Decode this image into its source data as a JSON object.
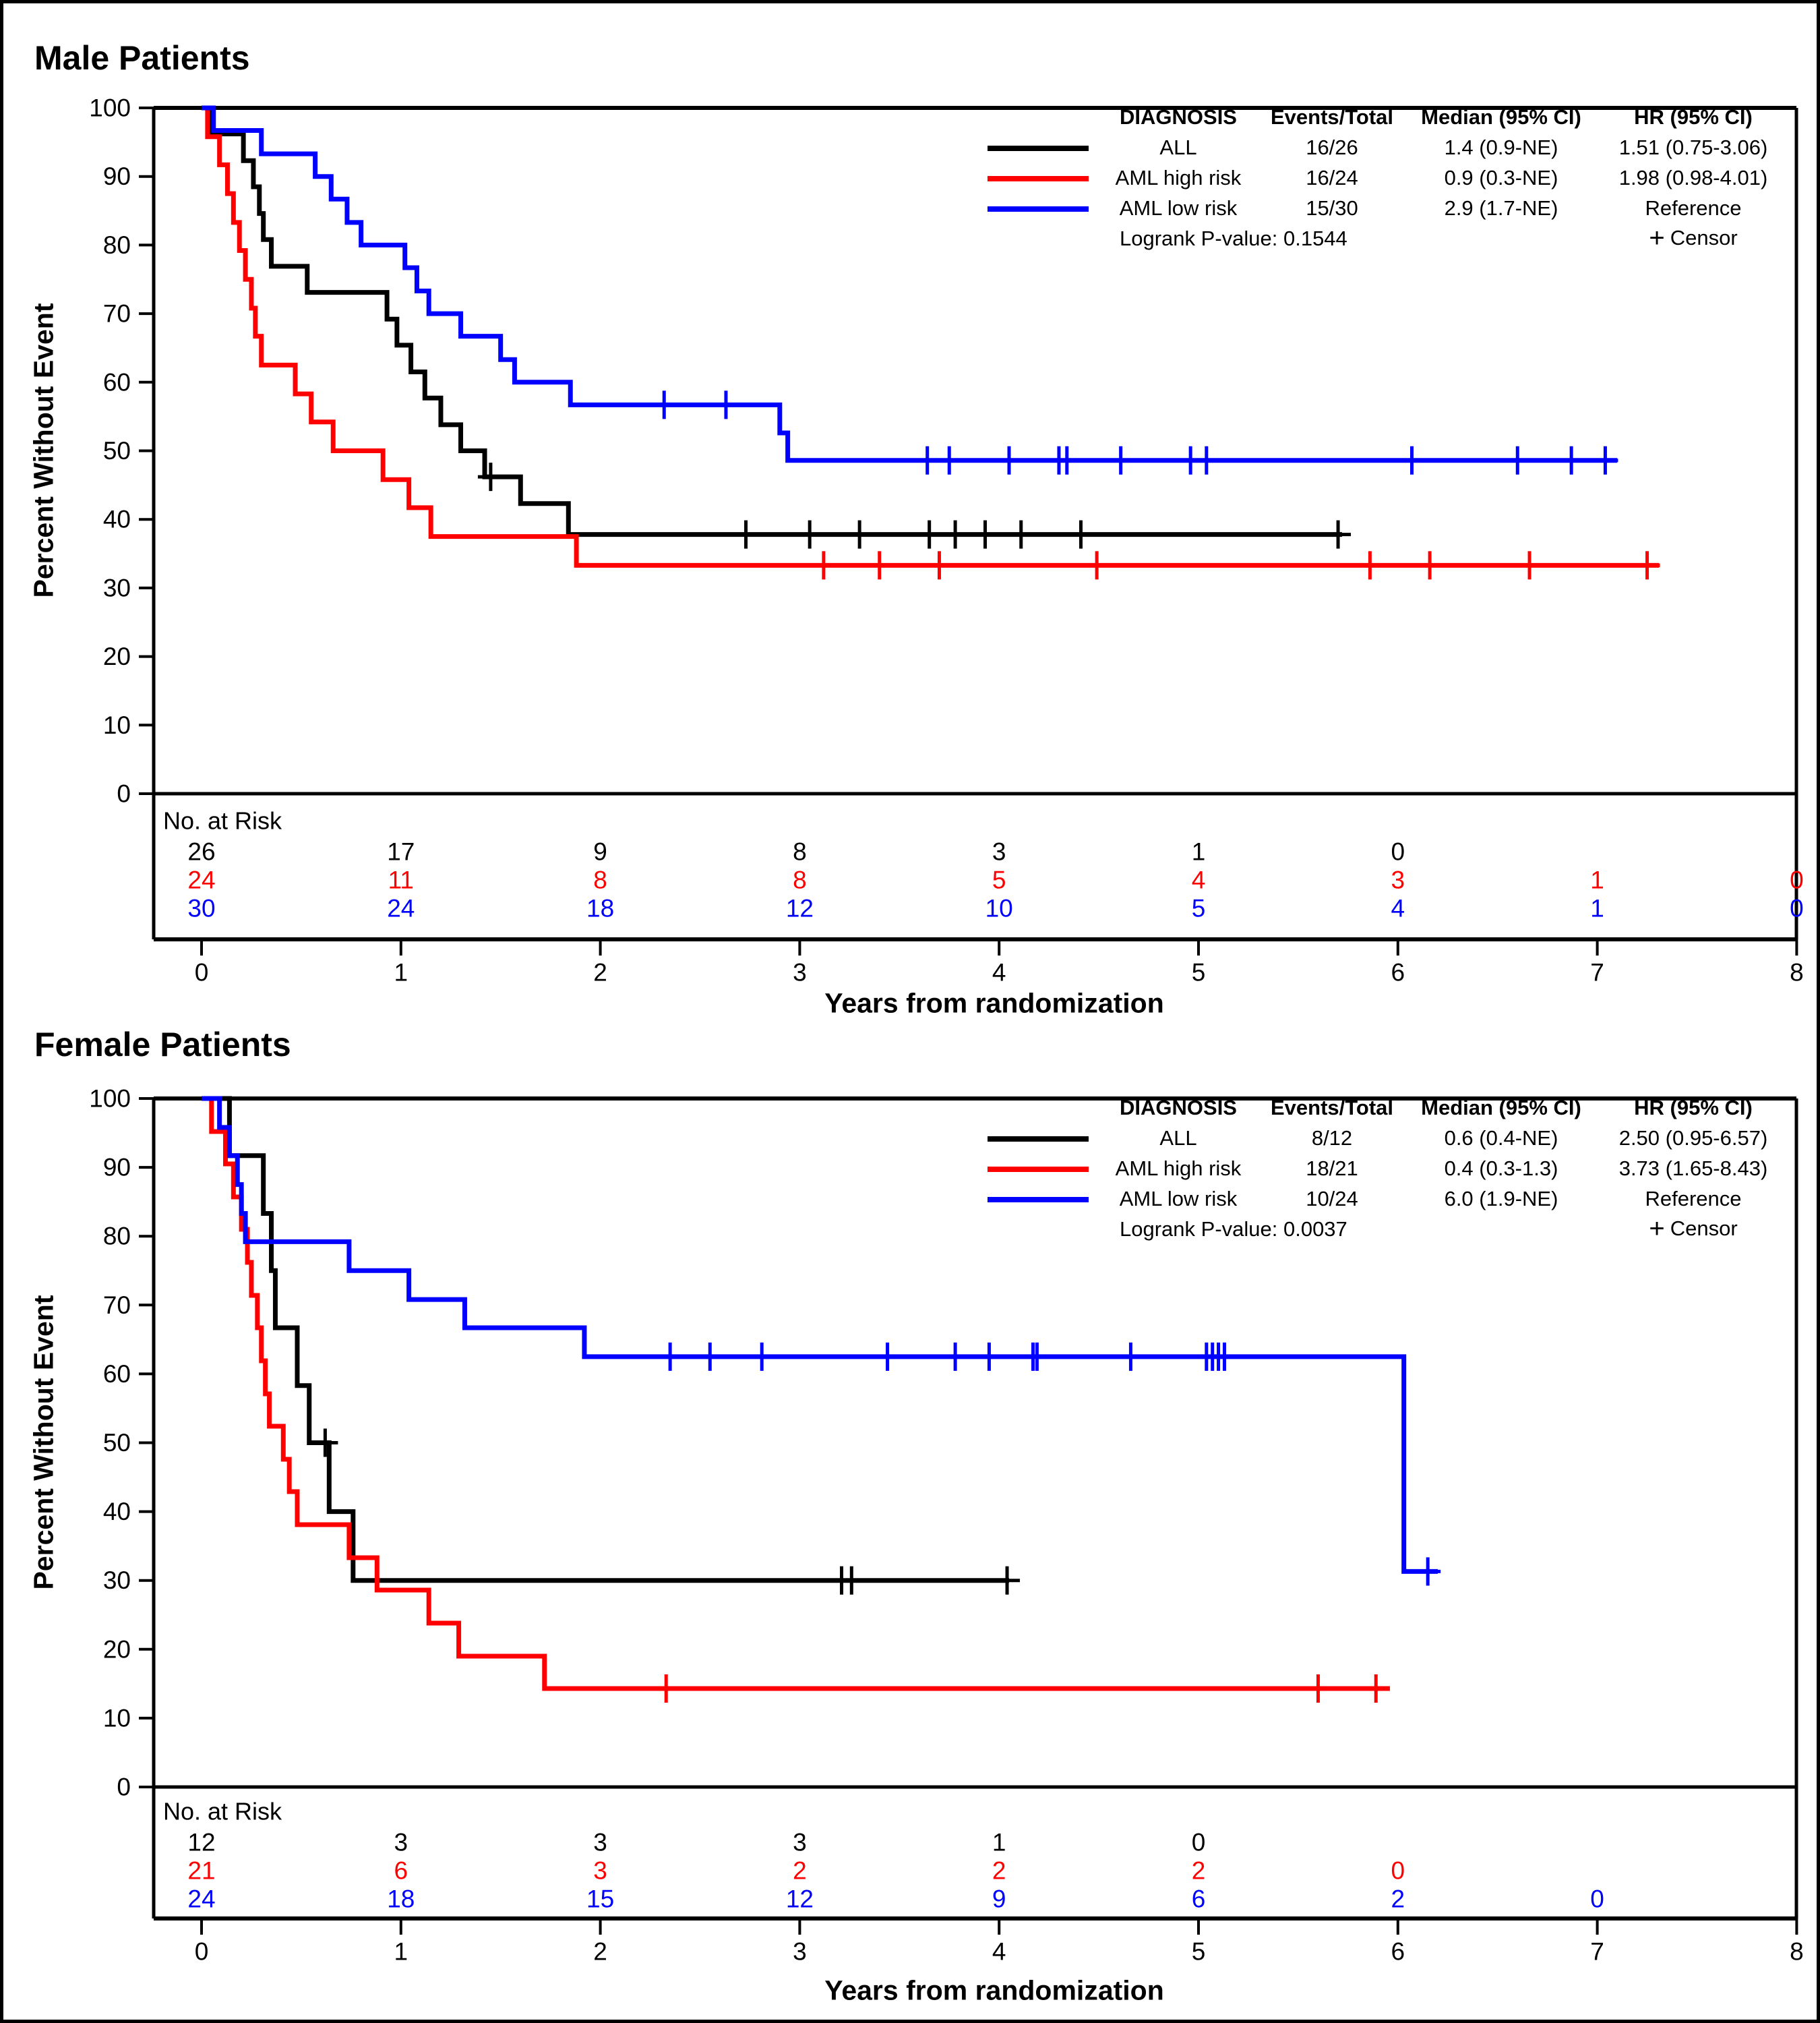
{
  "figure": {
    "background": "#FFFFFF",
    "border_color": "#000000",
    "censor_symbol": "+",
    "colors": {
      "all": "#000000",
      "aml_high": "#FF0000",
      "aml_low": "#0000FF"
    }
  },
  "chart_data": [
    {
      "type": "line",
      "subtype": "kaplan-meier-step",
      "title": "Male Patients",
      "xlabel": "Years from randomization",
      "ylabel": "Percent Without Event",
      "xlim": [
        0,
        8
      ],
      "ylim": [
        0,
        100
      ],
      "xticks": [
        0,
        1,
        2,
        3,
        4,
        5,
        6,
        7,
        8
      ],
      "yticks": [
        0,
        10,
        20,
        30,
        40,
        50,
        60,
        70,
        80,
        90,
        100
      ],
      "grid": false,
      "legend_position": "top-right-inside",
      "legend": {
        "headers": [
          "DIAGNOSIS",
          "Events/Total",
          "Median (95% CI)",
          "HR (95% CI)"
        ],
        "rows": [
          {
            "label": "ALL",
            "color": "#000000",
            "events_total": "16/26",
            "median": "1.4 (0.9-NE)",
            "hr": "1.51 (0.75-3.06)"
          },
          {
            "label": "AML high risk",
            "color": "#FF0000",
            "events_total": "16/24",
            "median": "0.9 (0.3-NE)",
            "hr": "1.98 (0.98-4.01)"
          },
          {
            "label": "AML low risk",
            "color": "#0000FF",
            "events_total": "15/30",
            "median": "2.9 (1.7-NE)",
            "hr": "Reference"
          }
        ],
        "pvalue": "Logrank P-value: 0.1544",
        "censor_symbol": "+",
        "censor_label": "Censor"
      },
      "series": [
        {
          "name": "ALL",
          "color": "#000000",
          "steps": [
            [
              0,
              100
            ],
            [
              0.04,
              96.2
            ],
            [
              0.21,
              92.3
            ],
            [
              0.26,
              88.5
            ],
            [
              0.29,
              84.6
            ],
            [
              0.31,
              80.8
            ],
            [
              0.35,
              76.9
            ],
            [
              0.53,
              73.1
            ],
            [
              0.93,
              69.2
            ],
            [
              0.98,
              65.4
            ],
            [
              1.05,
              61.5
            ],
            [
              1.12,
              57.7
            ],
            [
              1.2,
              53.8
            ],
            [
              1.3,
              50.0
            ],
            [
              1.42,
              46.2
            ],
            [
              1.6,
              42.3
            ],
            [
              1.84,
              37.8
            ]
          ],
          "end": 5.72,
          "censors": [
            [
              1.45,
              46.2
            ],
            [
              2.73,
              37.8
            ],
            [
              3.05,
              37.8
            ],
            [
              3.3,
              37.8
            ],
            [
              3.65,
              37.8
            ],
            [
              3.78,
              37.8
            ],
            [
              3.93,
              37.8
            ],
            [
              4.11,
              37.8
            ],
            [
              4.41,
              37.8
            ],
            [
              5.7,
              37.8
            ]
          ]
        },
        {
          "name": "AML high risk",
          "color": "#FF0000",
          "steps": [
            [
              0,
              100
            ],
            [
              0.03,
              95.8
            ],
            [
              0.09,
              91.7
            ],
            [
              0.13,
              87.5
            ],
            [
              0.16,
              83.3
            ],
            [
              0.19,
              79.2
            ],
            [
              0.22,
              75.0
            ],
            [
              0.25,
              70.8
            ],
            [
              0.27,
              66.7
            ],
            [
              0.3,
              62.5
            ],
            [
              0.47,
              58.3
            ],
            [
              0.55,
              54.2
            ],
            [
              0.66,
              50.0
            ],
            [
              0.91,
              45.8
            ],
            [
              1.04,
              41.7
            ],
            [
              1.15,
              37.5
            ],
            [
              1.88,
              33.3
            ]
          ],
          "end": 7.31,
          "censors": [
            [
              3.12,
              33.3
            ],
            [
              3.4,
              33.3
            ],
            [
              3.7,
              33.3
            ],
            [
              4.49,
              33.3
            ],
            [
              5.86,
              33.3
            ],
            [
              6.16,
              33.3
            ],
            [
              6.66,
              33.3
            ],
            [
              7.25,
              33.3
            ]
          ]
        },
        {
          "name": "AML low risk",
          "color": "#0000FF",
          "steps": [
            [
              0,
              100
            ],
            [
              0.06,
              96.7
            ],
            [
              0.3,
              93.3
            ],
            [
              0.57,
              90.0
            ],
            [
              0.65,
              86.7
            ],
            [
              0.73,
              83.3
            ],
            [
              0.8,
              80.0
            ],
            [
              1.02,
              76.7
            ],
            [
              1.08,
              73.3
            ],
            [
              1.14,
              70.0
            ],
            [
              1.3,
              66.7
            ],
            [
              1.5,
              63.3
            ],
            [
              1.57,
              60.0
            ],
            [
              1.85,
              56.7
            ],
            [
              2.9,
              52.6
            ],
            [
              2.94,
              48.6
            ]
          ],
          "end": 7.1,
          "censors": [
            [
              2.32,
              56.7
            ],
            [
              2.63,
              56.7
            ],
            [
              3.64,
              48.6
            ],
            [
              3.75,
              48.6
            ],
            [
              4.05,
              48.6
            ],
            [
              4.3,
              48.6
            ],
            [
              4.34,
              48.6
            ],
            [
              4.61,
              48.6
            ],
            [
              4.96,
              48.6
            ],
            [
              5.04,
              48.6
            ],
            [
              6.07,
              48.6
            ],
            [
              6.6,
              48.6
            ],
            [
              6.87,
              48.6
            ],
            [
              7.04,
              48.6
            ]
          ]
        }
      ],
      "at_risk": {
        "label": "No. at Risk",
        "times": [
          0,
          1,
          2,
          3,
          4,
          5,
          6,
          7,
          8
        ],
        "rows": [
          {
            "name": "ALL",
            "color": "#000000",
            "counts": [
              "26",
              "17",
              "9",
              "8",
              "3",
              "1",
              "0",
              "",
              ""
            ]
          },
          {
            "name": "AML high risk",
            "color": "#FF0000",
            "counts": [
              "24",
              "11",
              "8",
              "8",
              "5",
              "4",
              "3",
              "1",
              "0"
            ]
          },
          {
            "name": "AML low risk",
            "color": "#0000FF",
            "counts": [
              "30",
              "24",
              "18",
              "12",
              "10",
              "5",
              "4",
              "1",
              "0"
            ]
          }
        ]
      }
    },
    {
      "type": "line",
      "subtype": "kaplan-meier-step",
      "title": "Female Patients",
      "xlabel": "Years from randomization",
      "ylabel": "Percent Without Event",
      "xlim": [
        0,
        8
      ],
      "ylim": [
        0,
        100
      ],
      "xticks": [
        0,
        1,
        2,
        3,
        4,
        5,
        6,
        7,
        8
      ],
      "yticks": [
        0,
        10,
        20,
        30,
        40,
        50,
        60,
        70,
        80,
        90,
        100
      ],
      "grid": false,
      "legend_position": "top-right-inside",
      "legend": {
        "headers": [
          "DIAGNOSIS",
          "Events/Total",
          "Median (95% CI)",
          "HR (95% CI)"
        ],
        "rows": [
          {
            "label": "ALL",
            "color": "#000000",
            "events_total": "8/12",
            "median": "0.6 (0.4-NE)",
            "hr": "2.50 (0.95-6.57)"
          },
          {
            "label": "AML high risk",
            "color": "#FF0000",
            "events_total": "18/21",
            "median": "0.4 (0.3-1.3)",
            "hr": "3.73 (1.65-8.43)"
          },
          {
            "label": "AML low risk",
            "color": "#0000FF",
            "events_total": "10/24",
            "median": "6.0 (1.9-NE)",
            "hr": "Reference"
          }
        ],
        "pvalue": "Logrank P-value: 0.0037",
        "censor_symbol": "+",
        "censor_label": "Censor"
      },
      "series": [
        {
          "name": "ALL",
          "color": "#000000",
          "steps": [
            [
              0,
              100
            ],
            [
              0.14,
              91.7
            ],
            [
              0.31,
              83.3
            ],
            [
              0.35,
              75.0
            ],
            [
              0.37,
              66.7
            ],
            [
              0.48,
              58.3
            ],
            [
              0.54,
              50.0
            ],
            [
              0.64,
              40.0
            ],
            [
              0.76,
              30.0
            ]
          ],
          "end": 4.05,
          "censors": [
            [
              0.62,
              50.0
            ],
            [
              3.21,
              30.0
            ],
            [
              3.26,
              30.0
            ],
            [
              4.04,
              30.0
            ]
          ]
        },
        {
          "name": "AML high risk",
          "color": "#FF0000",
          "steps": [
            [
              0,
              100
            ],
            [
              0.05,
              95.2
            ],
            [
              0.12,
              90.5
            ],
            [
              0.16,
              85.7
            ],
            [
              0.2,
              81.0
            ],
            [
              0.23,
              76.2
            ],
            [
              0.25,
              71.4
            ],
            [
              0.28,
              66.7
            ],
            [
              0.3,
              61.9
            ],
            [
              0.32,
              57.1
            ],
            [
              0.34,
              52.4
            ],
            [
              0.41,
              47.6
            ],
            [
              0.44,
              42.9
            ],
            [
              0.48,
              38.1
            ],
            [
              0.74,
              33.3
            ],
            [
              0.88,
              28.6
            ],
            [
              1.14,
              23.8
            ],
            [
              1.29,
              19.0
            ],
            [
              1.72,
              14.3
            ]
          ],
          "end": 5.96,
          "censors": [
            [
              2.33,
              14.3
            ],
            [
              5.6,
              14.3
            ],
            [
              5.89,
              14.3
            ]
          ]
        },
        {
          "name": "AML low risk",
          "color": "#0000FF",
          "steps": [
            [
              0,
              100
            ],
            [
              0.09,
              95.8
            ],
            [
              0.14,
              91.7
            ],
            [
              0.18,
              87.5
            ],
            [
              0.2,
              83.3
            ],
            [
              0.22,
              79.2
            ],
            [
              0.74,
              75.0
            ],
            [
              1.04,
              70.8
            ],
            [
              1.32,
              66.7
            ],
            [
              1.92,
              62.5
            ],
            [
              6.03,
              31.3
            ]
          ],
          "end": 6.2,
          "censors": [
            [
              2.35,
              62.5
            ],
            [
              2.55,
              62.5
            ],
            [
              2.81,
              62.5
            ],
            [
              3.44,
              62.5
            ],
            [
              3.78,
              62.5
            ],
            [
              3.95,
              62.5
            ],
            [
              4.17,
              62.5
            ],
            [
              4.19,
              62.5
            ],
            [
              4.66,
              62.5
            ],
            [
              5.04,
              62.5
            ],
            [
              5.07,
              62.5
            ],
            [
              5.1,
              62.5
            ],
            [
              5.13,
              62.5
            ],
            [
              6.15,
              31.3
            ]
          ]
        }
      ],
      "at_risk": {
        "label": "No. at Risk",
        "times": [
          0,
          1,
          2,
          3,
          4,
          5,
          6,
          7,
          8
        ],
        "rows": [
          {
            "name": "ALL",
            "color": "#000000",
            "counts": [
              "12",
              "3",
              "3",
              "3",
              "1",
              "0",
              "",
              "",
              ""
            ]
          },
          {
            "name": "AML high risk",
            "color": "#FF0000",
            "counts": [
              "21",
              "6",
              "3",
              "2",
              "2",
              "2",
              "0",
              "",
              ""
            ]
          },
          {
            "name": "AML low risk",
            "color": "#0000FF",
            "counts": [
              "24",
              "18",
              "15",
              "12",
              "9",
              "6",
              "2",
              "0",
              ""
            ]
          }
        ]
      }
    }
  ]
}
